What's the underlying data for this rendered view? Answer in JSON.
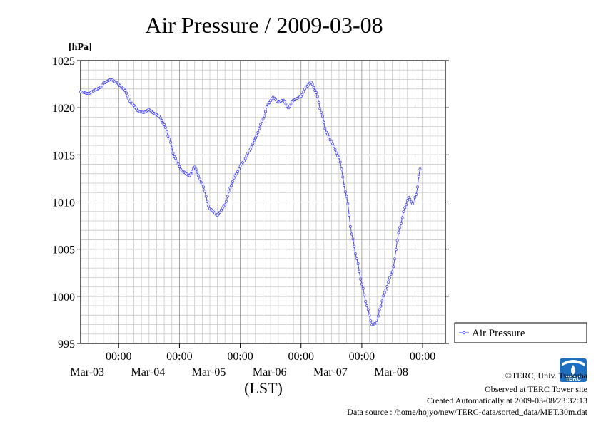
{
  "chart_data": {
    "type": "line",
    "title": "Air Pressure / 2009-03-08",
    "ylabel": "[hPa]",
    "xlabel": "(LST)",
    "ylim": [
      995,
      1025
    ],
    "yticks": [
      "995",
      "1000",
      "1005",
      "1010",
      "1015",
      "1020",
      "1025"
    ],
    "xlim": [
      "2009-03-02 09:00",
      "2009-03-08 09:00"
    ],
    "xticks": [
      {
        "time": "00:00",
        "date": "Mar-03"
      },
      {
        "time": "00:00",
        "date": "Mar-04"
      },
      {
        "time": "00:00",
        "date": "Mar-05"
      },
      {
        "time": "00:00",
        "date": "Mar-06"
      },
      {
        "time": "00:00",
        "date": "Mar-07"
      },
      {
        "time": "00:00",
        "date": "Mar-08"
      }
    ],
    "grid": true,
    "legend": "right",
    "series_color": "#3a3aff",
    "series": [
      {
        "name": "Air Pressure",
        "x": [
          "2009-03-02 09:00",
          "2009-03-02 12:00",
          "2009-03-02 15:00",
          "2009-03-02 17:00",
          "2009-03-02 18:00",
          "2009-03-02 21:00",
          "2009-03-02 23:00",
          "2009-03-03 02:00",
          "2009-03-03 05:00",
          "2009-03-03 08:00",
          "2009-03-03 10:00",
          "2009-03-03 12:00",
          "2009-03-03 14:00",
          "2009-03-03 16:00",
          "2009-03-03 18:00",
          "2009-03-03 20:00",
          "2009-03-03 22:00",
          "2009-03-04 01:00",
          "2009-03-04 04:00",
          "2009-03-04 06:00",
          "2009-03-04 09:00",
          "2009-03-04 12:00",
          "2009-03-04 15:00",
          "2009-03-04 18:00",
          "2009-03-04 20:00",
          "2009-03-04 22:00",
          "2009-03-05 01:00",
          "2009-03-05 04:00",
          "2009-03-05 06:00",
          "2009-03-05 09:00",
          "2009-03-05 11:00",
          "2009-03-05 13:00",
          "2009-03-05 15:00",
          "2009-03-05 17:00",
          "2009-03-05 19:00",
          "2009-03-05 21:00",
          "2009-03-06 00:00",
          "2009-03-06 02:00",
          "2009-03-06 04:00",
          "2009-03-06 06:00",
          "2009-03-06 08:00",
          "2009-03-06 10:00",
          "2009-03-06 12:00",
          "2009-03-06 15:00",
          "2009-03-06 18:00",
          "2009-03-06 20:00",
          "2009-03-06 22:00",
          "2009-03-07 00:00",
          "2009-03-07 02:00",
          "2009-03-07 04:00",
          "2009-03-07 06:00",
          "2009-03-07 07:00",
          "2009-03-07 09:00",
          "2009-03-07 12:00",
          "2009-03-07 15:00",
          "2009-03-07 17:00",
          "2009-03-07 18:30",
          "2009-03-07 20:00",
          "2009-03-07 21:30",
          "2009-03-07 23:00"
        ],
        "y": [
          1021.7,
          1021.5,
          1021.9,
          1022.2,
          1022.6,
          1023.0,
          1022.7,
          1022.0,
          1020.5,
          1019.6,
          1019.5,
          1019.8,
          1019.4,
          1019.1,
          1018.2,
          1016.7,
          1014.8,
          1013.3,
          1012.8,
          1013.7,
          1011.9,
          1009.3,
          1008.6,
          1009.7,
          1011.5,
          1012.8,
          1014.2,
          1015.6,
          1016.8,
          1018.8,
          1020.4,
          1021.1,
          1020.6,
          1020.8,
          1020.0,
          1020.8,
          1021.2,
          1022.2,
          1022.7,
          1021.6,
          1019.5,
          1017.4,
          1016.4,
          1014.7,
          1010.6,
          1006.6,
          1004.0,
          1001.3,
          999.0,
          997.0,
          997.2,
          998.6,
          1000.4,
          1002.6,
          1007.3,
          1009.4,
          1010.5,
          1009.8,
          1010.8,
          1013.5
        ]
      }
    ]
  },
  "credits": {
    "copyright": "©TERC, Univ. Tsukuba",
    "observed": "Observed at TERC Tower site",
    "created": "Created Automatically at 2009-03-08/23:32:13",
    "source": "Data source : /home/hojyo/new/TERC-data/sorted_data/MET.30m.dat"
  },
  "logo": {
    "name": "terc-logo-icon",
    "text": "TERC",
    "color": "#1f6fc0"
  }
}
